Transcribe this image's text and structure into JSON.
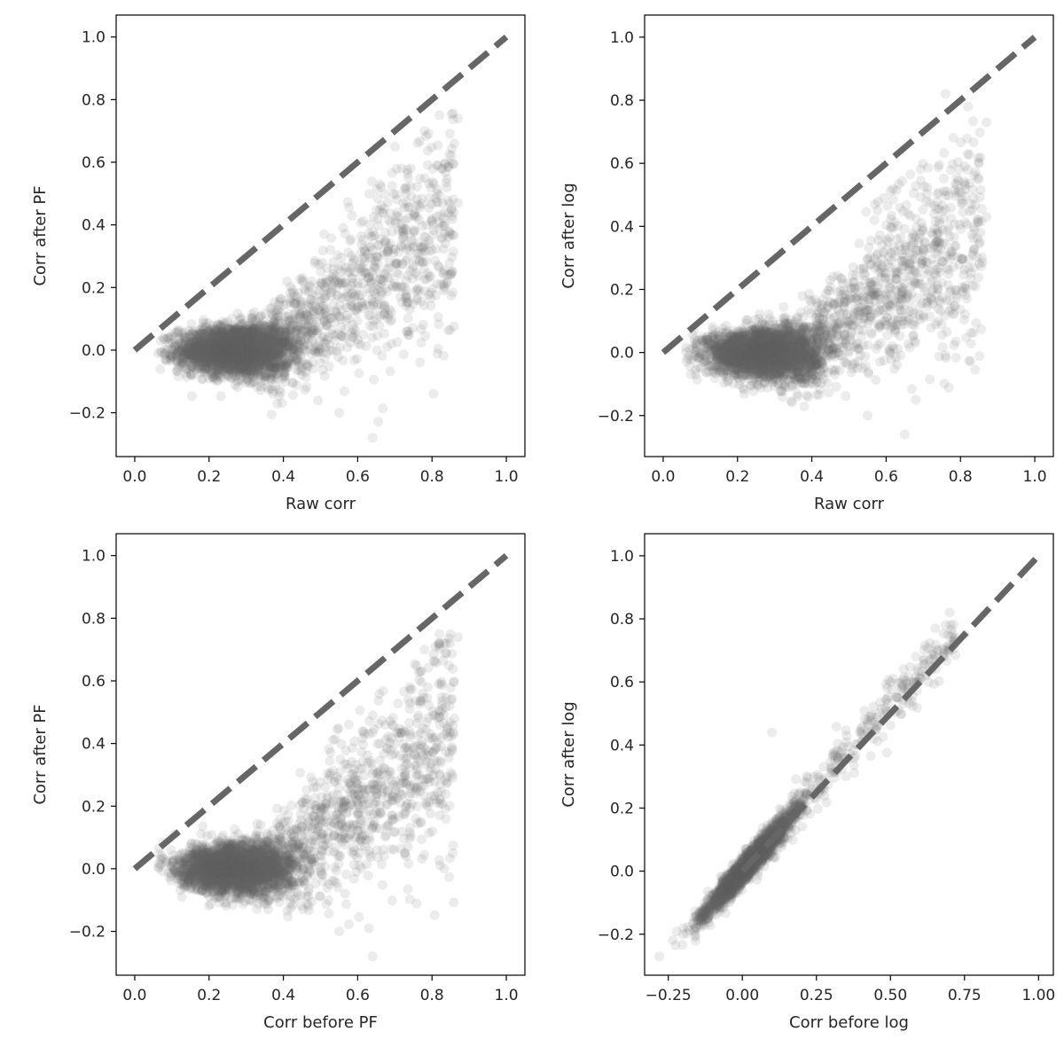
{
  "chart_data": [
    {
      "type": "scatter",
      "xlabel": "Raw corr",
      "ylabel": "Corr after PF",
      "xlim": [
        -0.05,
        1.05
      ],
      "ylim": [
        -0.34,
        1.07
      ],
      "xticks": [
        0.0,
        0.2,
        0.4,
        0.6,
        0.8,
        1.0
      ],
      "xtick_labels": [
        "0.0",
        "0.2",
        "0.4",
        "0.6",
        "0.8",
        "1.0"
      ],
      "yticks": [
        -0.2,
        0.0,
        0.2,
        0.4,
        0.6,
        0.8,
        1.0
      ],
      "ytick_labels": [
        "−0.2",
        "0.0",
        "0.2",
        "0.4",
        "0.6",
        "0.8",
        "1.0"
      ],
      "reference_line": {
        "x": [
          0,
          1
        ],
        "y": [
          0,
          1
        ],
        "style": "dashed"
      },
      "point_color": "#666666",
      "point_alpha": 0.12,
      "grid": false,
      "series": [
        {
          "description": "dense cluster",
          "x_center": 0.28,
          "y_center": 0.0,
          "x_spread": [
            0.07,
            0.55
          ],
          "y_spread": [
            -0.12,
            0.15
          ]
        },
        {
          "description": "upper tail",
          "x_range": [
            0.45,
            0.87
          ],
          "y_range": [
            -0.28,
            0.76
          ]
        }
      ],
      "sample_points": [
        [
          0.07,
          0.03
        ],
        [
          0.08,
          -0.01
        ],
        [
          0.1,
          -0.02
        ],
        [
          0.3,
          0.0
        ],
        [
          0.55,
          -0.2
        ],
        [
          0.64,
          -0.28
        ],
        [
          0.7,
          0.65
        ],
        [
          0.78,
          0.7
        ],
        [
          0.82,
          0.75
        ],
        [
          0.87,
          0.74
        ],
        [
          0.86,
          0.66
        ],
        [
          0.87,
          0.47
        ],
        [
          0.8,
          0.42
        ]
      ]
    },
    {
      "type": "scatter",
      "xlabel": "Raw corr",
      "ylabel": "Corr after log",
      "xlim": [
        -0.05,
        1.05
      ],
      "ylim": [
        -0.33,
        1.07
      ],
      "xticks": [
        0.0,
        0.2,
        0.4,
        0.6,
        0.8,
        1.0
      ],
      "xtick_labels": [
        "0.0",
        "0.2",
        "0.4",
        "0.6",
        "0.8",
        "1.0"
      ],
      "yticks": [
        -0.2,
        0.0,
        0.2,
        0.4,
        0.6,
        0.8,
        1.0
      ],
      "ytick_labels": [
        "−0.2",
        "0.0",
        "0.2",
        "0.4",
        "0.6",
        "0.8",
        "1.0"
      ],
      "reference_line": {
        "x": [
          0,
          1
        ],
        "y": [
          0,
          1
        ],
        "style": "dashed"
      },
      "point_color": "#666666",
      "point_alpha": 0.12,
      "grid": false,
      "series": [
        {
          "description": "dense cluster",
          "x_center": 0.28,
          "y_center": 0.02,
          "x_spread": [
            0.07,
            0.55
          ],
          "y_spread": [
            -0.1,
            0.15
          ]
        },
        {
          "description": "upper tail",
          "x_range": [
            0.45,
            0.87
          ],
          "y_range": [
            -0.26,
            0.82
          ]
        }
      ],
      "sample_points": [
        [
          0.09,
          0.01
        ],
        [
          0.3,
          0.02
        ],
        [
          0.55,
          -0.2
        ],
        [
          0.65,
          -0.26
        ],
        [
          0.76,
          0.82
        ],
        [
          0.82,
          0.78
        ],
        [
          0.87,
          0.73
        ],
        [
          0.87,
          0.43
        ],
        [
          0.85,
          0.6
        ],
        [
          0.68,
          -0.15
        ]
      ]
    },
    {
      "type": "scatter",
      "xlabel": "Corr before PF",
      "ylabel": "Corr after PF",
      "xlim": [
        -0.05,
        1.05
      ],
      "ylim": [
        -0.34,
        1.07
      ],
      "xticks": [
        0.0,
        0.2,
        0.4,
        0.6,
        0.8,
        1.0
      ],
      "xtick_labels": [
        "0.0",
        "0.2",
        "0.4",
        "0.6",
        "0.8",
        "1.0"
      ],
      "yticks": [
        -0.2,
        0.0,
        0.2,
        0.4,
        0.6,
        0.8,
        1.0
      ],
      "ytick_labels": [
        "−0.2",
        "0.0",
        "0.2",
        "0.4",
        "0.6",
        "0.8",
        "1.0"
      ],
      "reference_line": {
        "x": [
          0,
          1
        ],
        "y": [
          0,
          1
        ],
        "style": "dashed"
      },
      "point_color": "#666666",
      "point_alpha": 0.12,
      "grid": false,
      "series": [
        {
          "description": "dense cluster",
          "x_center": 0.28,
          "y_center": 0.0,
          "x_spread": [
            0.07,
            0.55
          ],
          "y_spread": [
            -0.12,
            0.15
          ]
        },
        {
          "description": "upper tail",
          "x_range": [
            0.45,
            0.87
          ],
          "y_range": [
            -0.28,
            0.76
          ]
        }
      ],
      "sample_points": [
        [
          0.07,
          0.03
        ],
        [
          0.3,
          0.0
        ],
        [
          0.55,
          -0.2
        ],
        [
          0.64,
          -0.28
        ],
        [
          0.78,
          0.7
        ],
        [
          0.82,
          0.75
        ],
        [
          0.87,
          0.74
        ],
        [
          0.86,
          0.48
        ],
        [
          0.8,
          0.42
        ]
      ]
    },
    {
      "type": "scatter",
      "xlabel": "Corr before log",
      "ylabel": "Corr after log",
      "xlim": [
        -0.33,
        1.05
      ],
      "ylim": [
        -0.33,
        1.07
      ],
      "xticks": [
        -0.25,
        0.0,
        0.25,
        0.5,
        0.75,
        1.0
      ],
      "xtick_labels": [
        "−0.25",
        "0.00",
        "0.25",
        "0.50",
        "0.75",
        "1.00"
      ],
      "yticks": [
        -0.2,
        0.0,
        0.2,
        0.4,
        0.6,
        0.8,
        1.0
      ],
      "ytick_labels": [
        "−0.2",
        "0.0",
        "0.2",
        "0.4",
        "0.6",
        "0.8",
        "1.0"
      ],
      "reference_line": {
        "x": [
          0,
          1
        ],
        "y": [
          0,
          1
        ],
        "style": "dashed"
      },
      "point_color": "#666666",
      "point_alpha": 0.12,
      "grid": false,
      "series": [
        {
          "description": "points along identity line",
          "x_range": [
            -0.28,
            0.76
          ],
          "y_range": [
            -0.27,
            0.82
          ]
        }
      ],
      "sample_points": [
        [
          -0.28,
          -0.27
        ],
        [
          -0.2,
          -0.2
        ],
        [
          0.1,
          0.44
        ],
        [
          0.3,
          0.33
        ],
        [
          0.5,
          0.6
        ],
        [
          0.7,
          0.82
        ],
        [
          0.75,
          0.75
        ]
      ]
    }
  ]
}
